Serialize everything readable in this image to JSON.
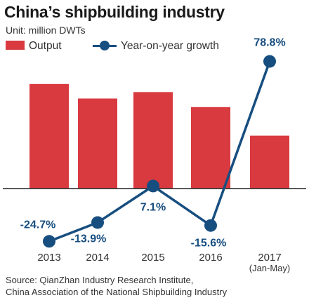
{
  "title": "China’s shipbuilding industry",
  "unit": "Unit: million DWTs",
  "legend": {
    "bar_label": "Output",
    "line_label": "Year-on-year growth"
  },
  "colors": {
    "bar": "#d83a3f",
    "line": "#174e80",
    "axis": "#222222"
  },
  "source": {
    "line1": "Source: QianZhan Industry Research Institute,",
    "line2": "China Association of the National Shipbuilding Industry"
  },
  "chart_data": {
    "type": "bar",
    "categories": [
      "2013",
      "2014",
      "2015",
      "2016",
      "2017"
    ],
    "category_sublabels": [
      "",
      "",
      "",
      "",
      "(Jan-May)"
    ],
    "series": [
      {
        "name": "Output",
        "type": "bar",
        "values": [
          45.34,
          39.05,
          41.84,
          35.32,
          22.93
        ],
        "labels": [
          "45.34",
          "39.05",
          "41.84",
          "35.32",
          "22.93"
        ]
      },
      {
        "name": "Year-on-year growth",
        "type": "line",
        "values": [
          -24.7,
          -13.9,
          7.1,
          -15.6,
          78.8
        ],
        "labels": [
          "-24.7%",
          "-13.9%",
          "7.1%",
          "-15.6%",
          "78.8%"
        ]
      }
    ],
    "legend_position": "top-left",
    "grid": false
  }
}
